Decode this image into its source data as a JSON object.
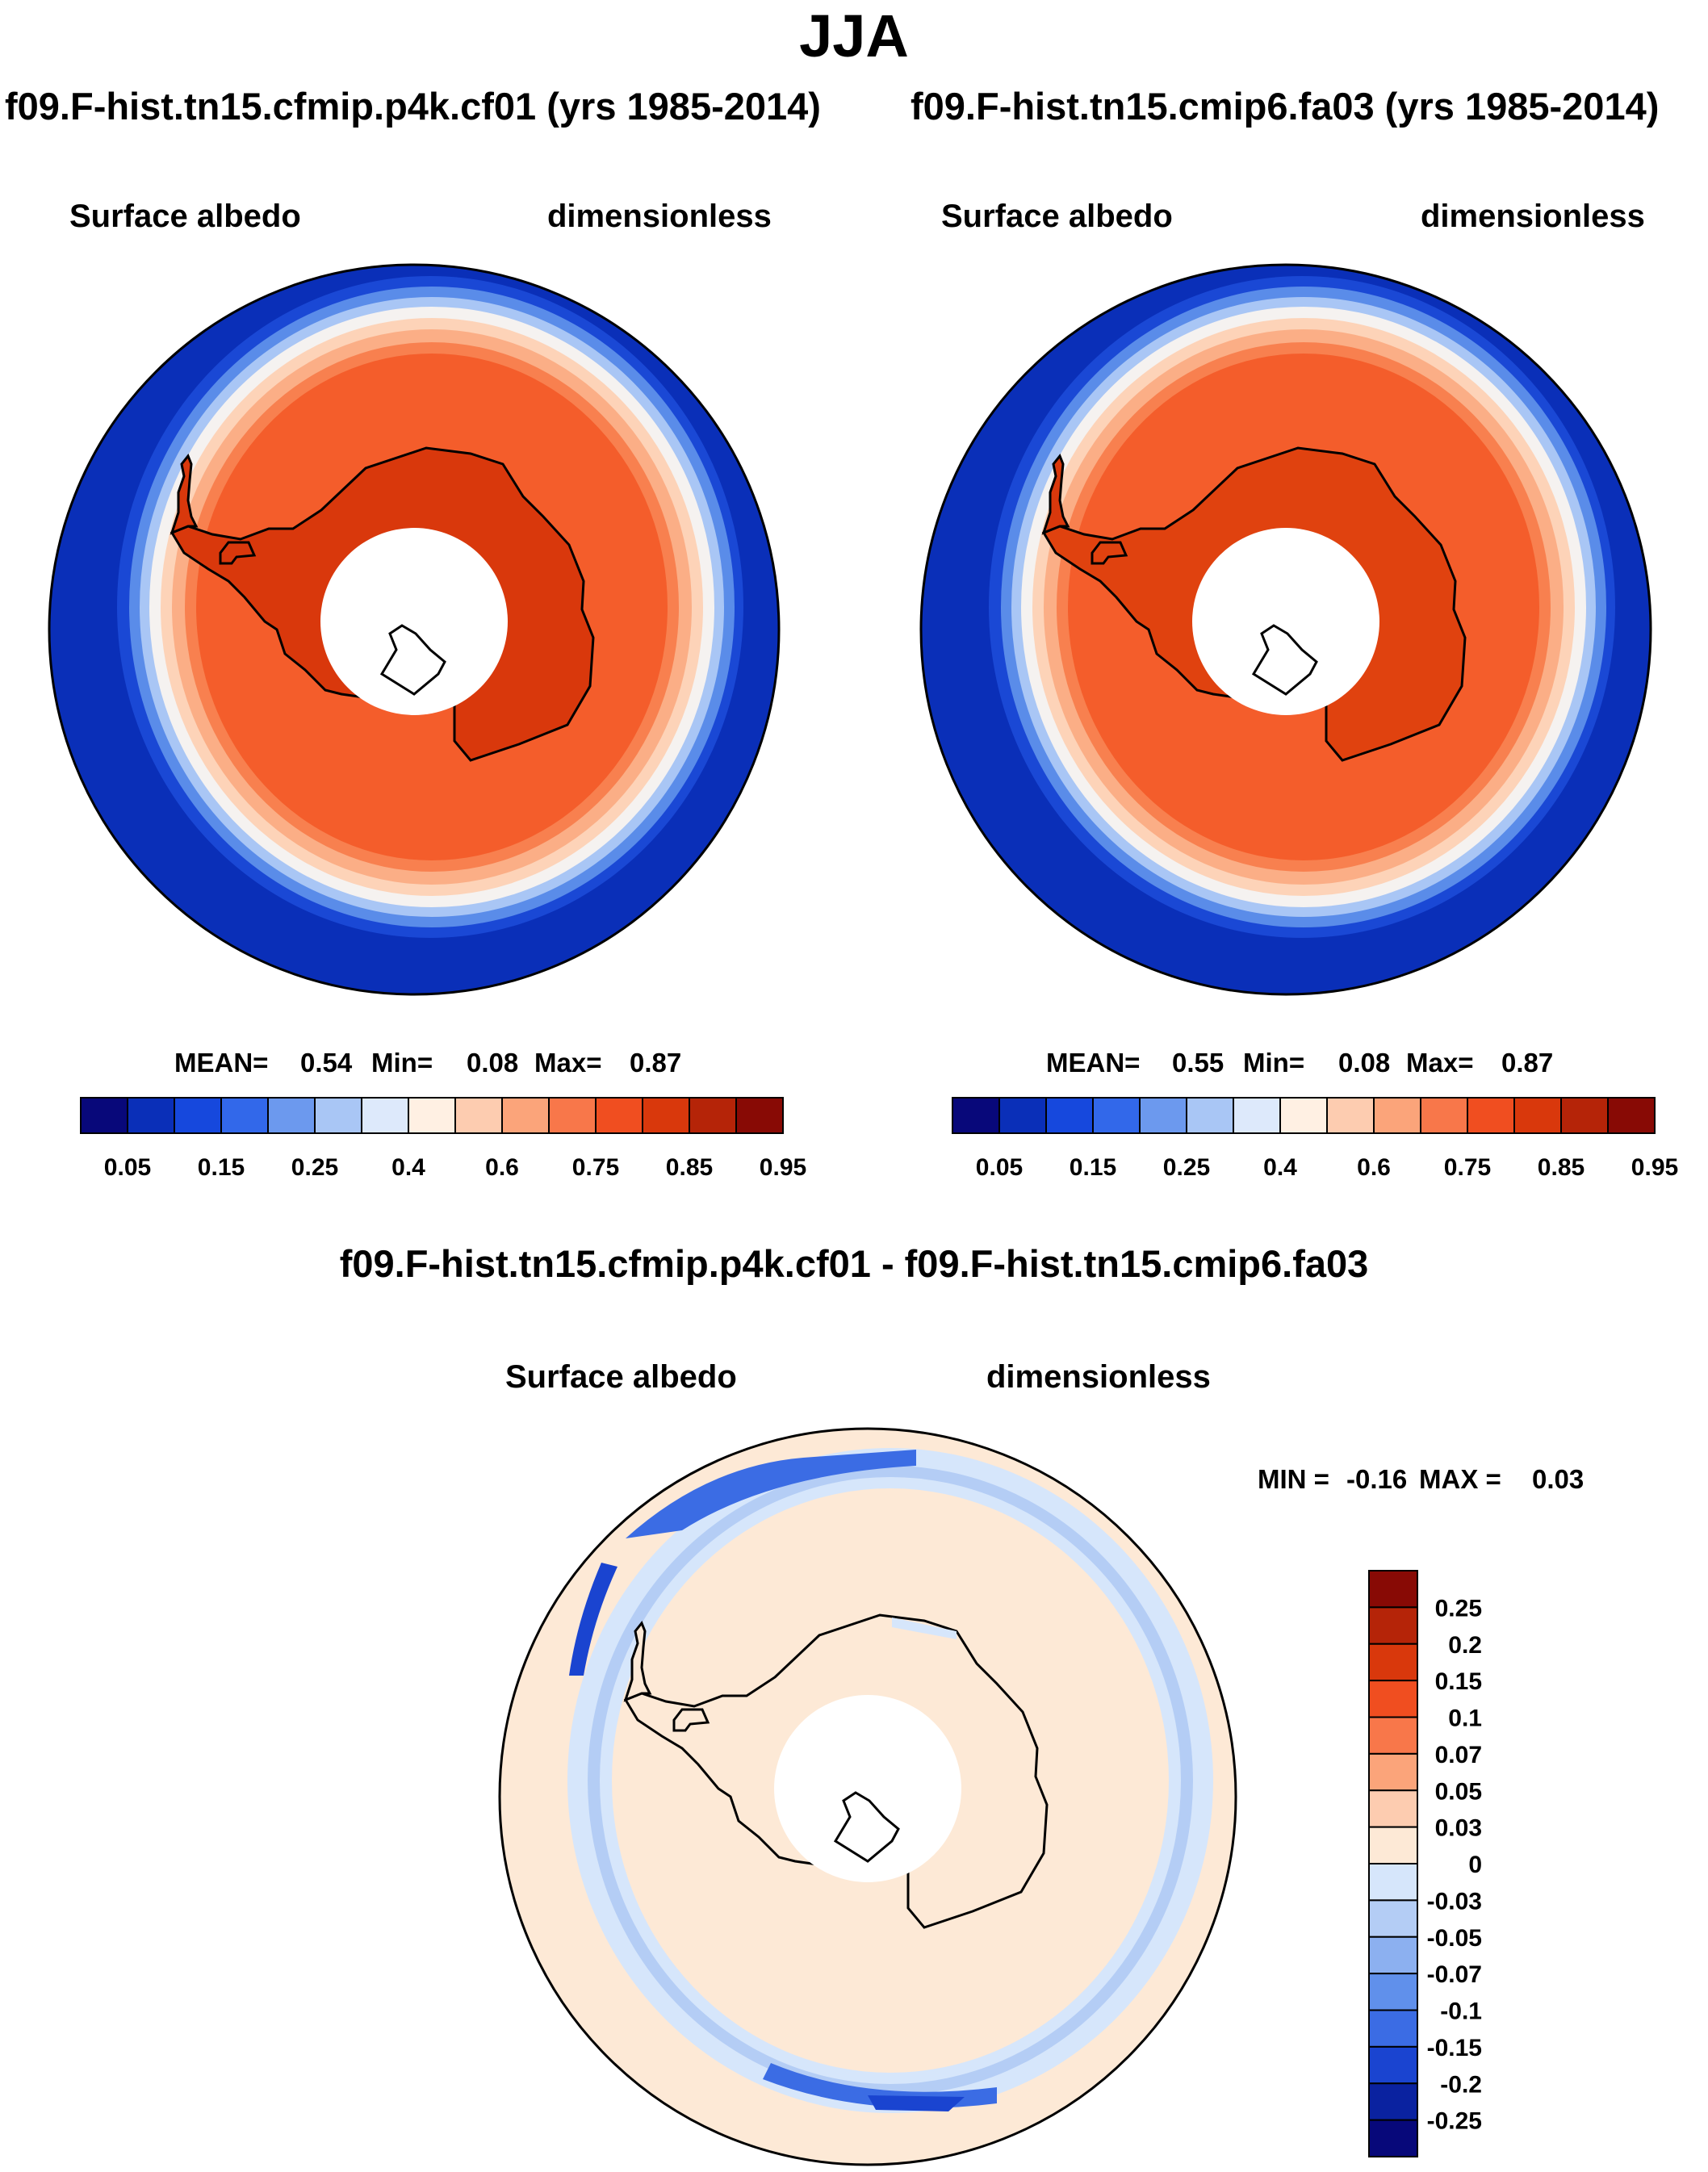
{
  "title": "JJA",
  "colors": {
    "ocean": "#0a2fb8",
    "land_outline": "#000000",
    "diff_pos": "#fde9d6",
    "diff_neg": "#d6e6fb"
  },
  "panels": [
    {
      "case": "f09.F-hist.tn15.cfmip.p4k.cf01 (yrs 1985-2014)",
      "variable": "Surface albedo",
      "units": "dimensionless",
      "stats": {
        "mean_label": "MEAN=",
        "mean": "0.54",
        "min_label": "Min=",
        "min": "0.08",
        "max_label": "Max=",
        "max": "0.87"
      }
    },
    {
      "case": "f09.F-hist.tn15.cmip6.fa03 (yrs 1985-2014)",
      "variable": "Surface albedo",
      "units": "dimensionless",
      "stats": {
        "mean_label": "MEAN=",
        "mean": "0.55",
        "min_label": "Min=",
        "min": "0.08",
        "max_label": "Max=",
        "max": "0.87"
      }
    }
  ],
  "colorbar": {
    "ticks": [
      "0.05",
      "0.15",
      "0.25",
      "0.4",
      "0.6",
      "0.75",
      "0.85",
      "0.95"
    ],
    "colors": [
      "#08087a",
      "#0a2fb8",
      "#1648dd",
      "#3268ea",
      "#6c99ee",
      "#a9c6f5",
      "#dde9fb",
      "#fff0e3",
      "#fdccb0",
      "#fba47a",
      "#f8774a",
      "#f04e20",
      "#d9380c",
      "#b52408",
      "#880a05"
    ]
  },
  "diff": {
    "title": "f09.F-hist.tn15.cfmip.p4k.cf01 - f09.F-hist.tn15.cmip6.fa03",
    "variable": "Surface albedo",
    "units": "dimensionless",
    "stats": {
      "min_label": "MIN =",
      "min": "-0.16",
      "max_label": "MAX =",
      "max": "0.03"
    },
    "colorbar": {
      "labels": [
        "0.25",
        "0.2",
        "0.15",
        "0.1",
        "0.07",
        "0.05",
        "0.03",
        "0",
        "-0.03",
        "-0.05",
        "-0.07",
        "-0.1",
        "-0.15",
        "-0.2",
        "-0.25"
      ],
      "colors": [
        "#880a05",
        "#b52408",
        "#d9380c",
        "#f04e20",
        "#f8774a",
        "#fba47a",
        "#fdccb0",
        "#fde9d6",
        "#d6e6fb",
        "#b4cdf5",
        "#8cb0f0",
        "#6090eb",
        "#3b6ce4",
        "#1a44d0",
        "#0a22a0",
        "#07087a"
      ]
    }
  }
}
